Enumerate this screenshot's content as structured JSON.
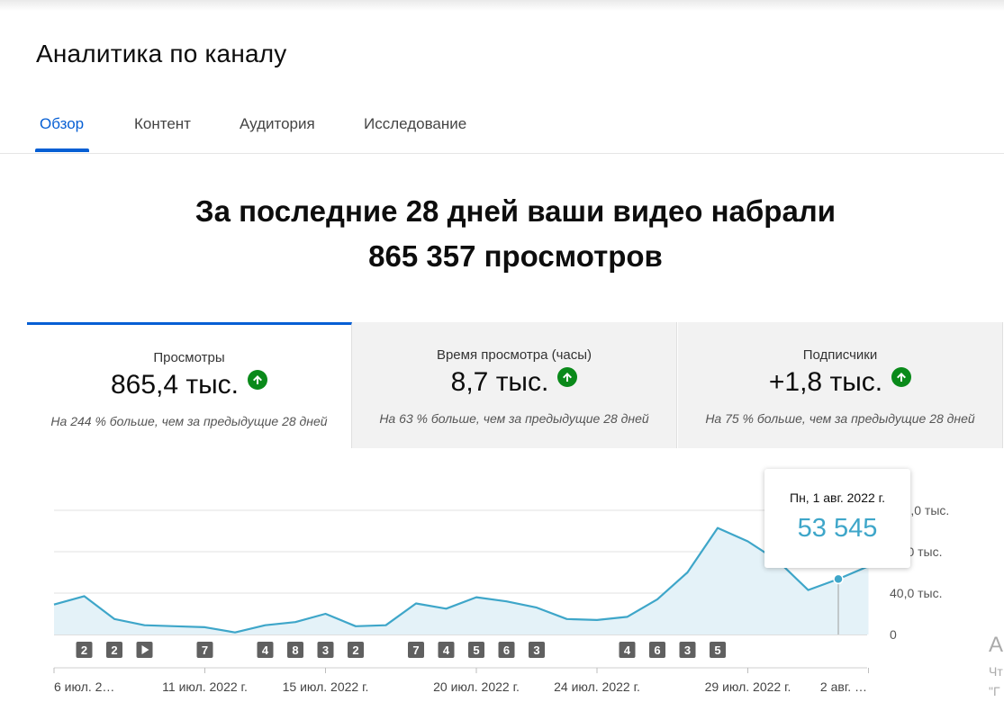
{
  "page_title": "Аналитика по каналу",
  "tabs": [
    {
      "label": "Обзор",
      "active": true
    },
    {
      "label": "Контент",
      "active": false
    },
    {
      "label": "Аудитория",
      "active": false
    },
    {
      "label": "Исследование",
      "active": false
    }
  ],
  "headline": {
    "line1": "За последние 28 дней ваши видео набрали",
    "line2": "865 357 просмотров"
  },
  "metrics": [
    {
      "label": "Просмотры",
      "value": "865,4 тыс.",
      "trend": "up",
      "note": "На 244 % больше, чем за предыдущие 28 дней",
      "active": true
    },
    {
      "label": "Время просмотра (часы)",
      "value": "8,7 тыс.",
      "trend": "up",
      "note": "На 63 % больше, чем за предыдущие 28 дней",
      "active": false
    },
    {
      "label": "Подписчики",
      "value": "+1,8 тыс.",
      "trend": "up",
      "note": "На 75 % больше, чем за предыдущие 28 дней",
      "active": false
    }
  ],
  "tooltip": {
    "date": "Пн, 1 авг. 2022 г.",
    "value": "53 545"
  },
  "colors": {
    "accent": "#065fd4",
    "trend_up": "#0a8a1a",
    "line": "#3ea6c9",
    "area": "#e4f2f8",
    "marker": "#606060"
  },
  "chart_data": {
    "type": "area",
    "y_ticks": [
      "0",
      "40,0 тыс.",
      "80,0 тыс.",
      "120,0 тыс."
    ],
    "ylim": [
      0,
      120000
    ],
    "x_tick_labels": [
      "6 июл. 2…",
      "11 июл. 2022 г.",
      "15 июл. 2022 г.",
      "20 июл. 2022 г.",
      "24 июл. 2022 г.",
      "29 июл. 2022 г.",
      "2 авг. …"
    ],
    "x_tick_days": [
      0,
      5,
      9,
      14,
      18,
      23,
      27
    ],
    "values": [
      29000,
      37000,
      15000,
      9000,
      8000,
      7000,
      2000,
      9000,
      12000,
      20000,
      8000,
      9000,
      30000,
      25000,
      36000,
      32000,
      26000,
      15000,
      14000,
      17000,
      34000,
      60000,
      103000,
      90000,
      71000,
      43000,
      53545,
      66000
    ],
    "highlight_index": 26,
    "markers": [
      {
        "day": 1,
        "label": "2"
      },
      {
        "day": 2,
        "label": "2"
      },
      {
        "day": 3,
        "label": "play"
      },
      {
        "day": 5,
        "label": "7"
      },
      {
        "day": 7,
        "label": "4"
      },
      {
        "day": 8,
        "label": "8"
      },
      {
        "day": 9,
        "label": "3"
      },
      {
        "day": 10,
        "label": "2"
      },
      {
        "day": 12,
        "label": "7"
      },
      {
        "day": 13,
        "label": "4"
      },
      {
        "day": 14,
        "label": "5"
      },
      {
        "day": 15,
        "label": "6"
      },
      {
        "day": 16,
        "label": "3"
      },
      {
        "day": 19,
        "label": "4"
      },
      {
        "day": 20,
        "label": "6"
      },
      {
        "day": 21,
        "label": "3"
      },
      {
        "day": 22,
        "label": "5"
      }
    ]
  },
  "cut_text": [
    "А",
    "Чт",
    "\"Г"
  ]
}
